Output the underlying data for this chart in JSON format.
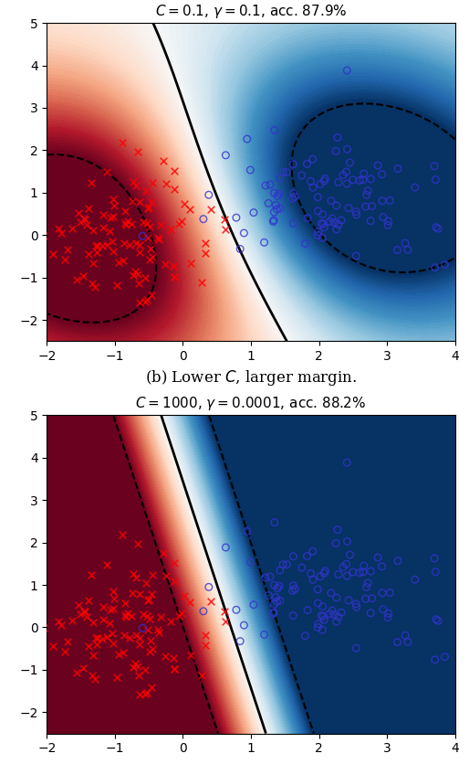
{
  "title1": "$C = 0.1$, $\\gamma = 0.1$, acc. 87.9%",
  "title2": "$C = 1000$, $\\gamma = 0.0001$, acc. 88.2%",
  "caption": "(b) Lower $C$, larger margin.",
  "xlim": [
    -2,
    4
  ],
  "ylim": [
    -2.5,
    5
  ],
  "C1": 0.1,
  "gamma1": 0.1,
  "C2": 1000,
  "gamma2": 0.0001,
  "random_seed": 42,
  "n_samples": 100,
  "figsize": [
    5.14,
    8.36
  ],
  "dpi": 100,
  "cmap": "RdBu",
  "vmin": -1,
  "vmax": 1
}
